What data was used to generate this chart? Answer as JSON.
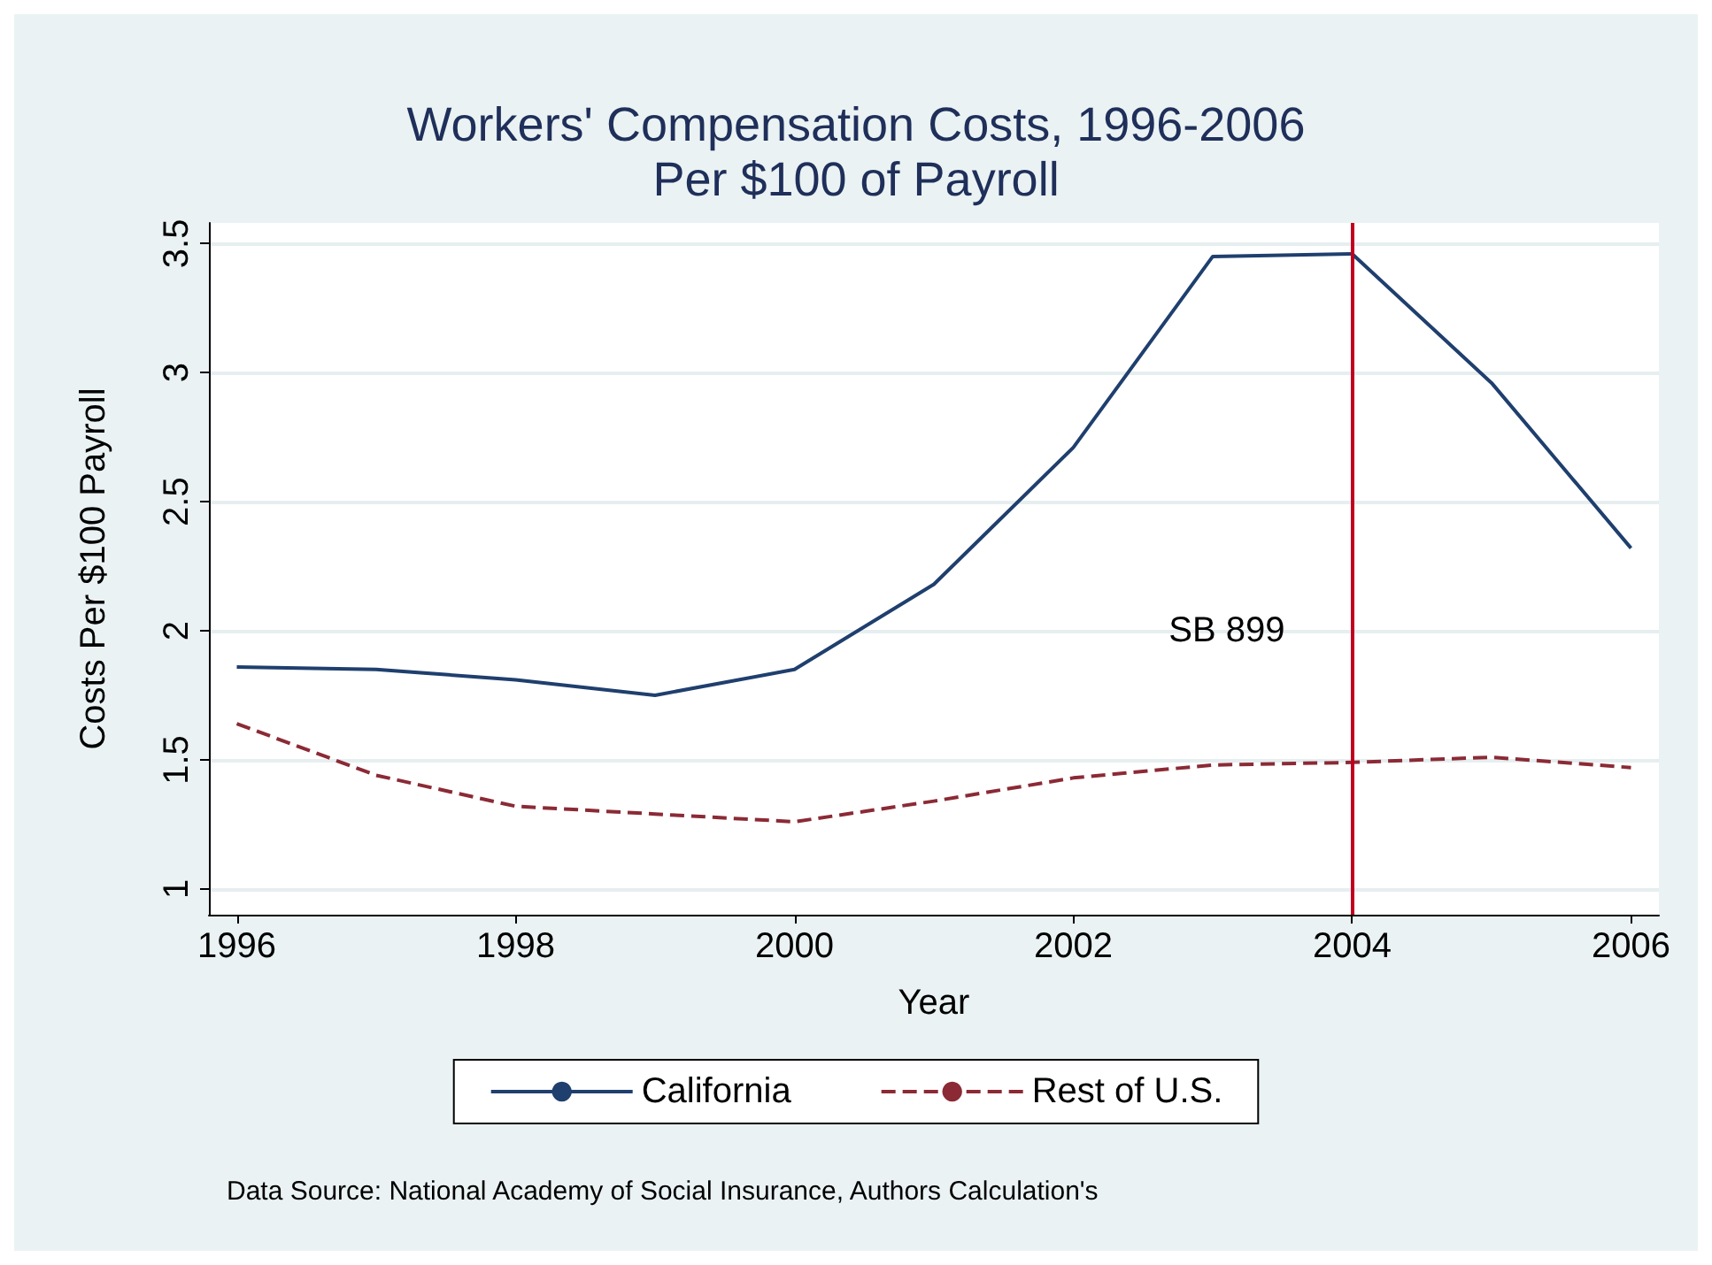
{
  "chart_data": {
    "type": "line",
    "title": "Workers' Compensation Costs, 1996-2006\nPer $100 of Payroll",
    "xlabel": "Year",
    "ylabel": "Costs Per $100 Payroll",
    "x": [
      1996,
      1997,
      1998,
      1999,
      2000,
      2001,
      2002,
      2003,
      2004,
      2005,
      2006
    ],
    "series": [
      {
        "name": "California",
        "color": "#1f3f6e",
        "line_style": "solid",
        "values": [
          1.86,
          1.85,
          1.81,
          1.75,
          1.85,
          2.18,
          2.71,
          3.45,
          3.46,
          2.96,
          2.32
        ]
      },
      {
        "name": "Rest of U.S.",
        "color": "#8b2a35",
        "line_style": "dashed",
        "values": [
          1.64,
          1.44,
          1.32,
          1.29,
          1.26,
          1.34,
          1.43,
          1.48,
          1.49,
          1.51,
          1.47
        ]
      }
    ],
    "xlim": [
      1995.8,
      2006.2
    ],
    "xticks": [
      1996,
      1998,
      2000,
      2002,
      2004,
      2006
    ],
    "ylim": [
      0.9,
      3.58
    ],
    "yticks": [
      1,
      1.5,
      2,
      2.5,
      3,
      3.5
    ],
    "ref_lines": [
      {
        "axis": "x",
        "value": 2004,
        "label": "SB 899",
        "color": "#c00020"
      }
    ],
    "annotations": [
      "Data Source: National Academy of Social Insurance, Authors Calculation's"
    ],
    "grid": "y",
    "legend": "bottom",
    "marker": "none"
  }
}
